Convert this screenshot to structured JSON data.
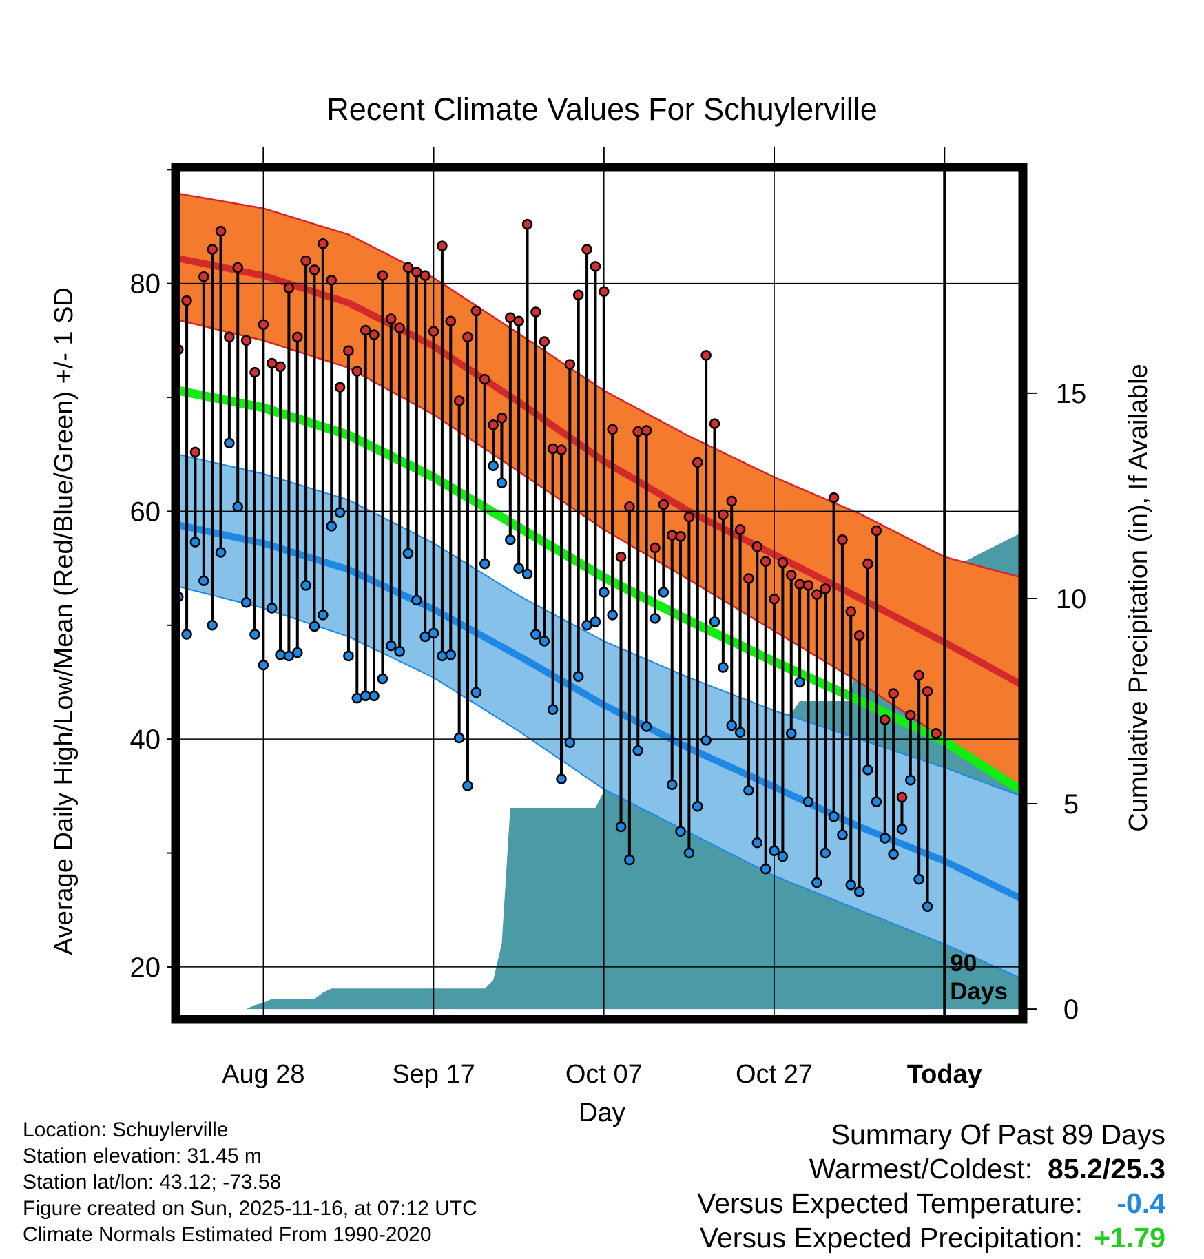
{
  "colors": {
    "high_band": "#f47a2d",
    "high_band_edge": "#d62728",
    "high_mean": "#d22a2a",
    "low_band": "#85c1e8",
    "low_band_edge": "#1e88e5",
    "low_mean": "#1e88e5",
    "mean_line": "#12ee12",
    "precip": "#4a9ba5",
    "high_dot": "#d32f2f",
    "low_dot": "#1e88e5",
    "stem": "#000000"
  },
  "chart_data": {
    "type": "line",
    "title": "Recent Climate Values For Schuylerville",
    "xlabel": "Day",
    "ylabel": "Average Daily High/Low/Mean (Red/Blue/Green) +/- 1 SD",
    "y2label": "Cumulative Precipitation (in), If Available",
    "ylim": [
      15.4,
      90.2
    ],
    "y2lim": [
      -0.25,
      20.5
    ],
    "xlim": [
      -0.3,
      99.2
    ],
    "yticks": [
      "20",
      "40",
      "60",
      "80"
    ],
    "y2ticks": [
      "0",
      "5",
      "10",
      "15"
    ],
    "xtick_days": [
      10,
      30,
      50,
      70,
      90
    ],
    "xtick_labels": [
      "Aug 28",
      "Sep 17",
      "Oct 07",
      "Oct 27",
      "Today"
    ],
    "period_marker_day": 90,
    "period_label_1": "90",
    "period_label_2": "Days",
    "normal_days": [
      0,
      10,
      20,
      30,
      40,
      50,
      60,
      70,
      80,
      90,
      99
    ],
    "normal_high_mean": [
      82.2,
      80.7,
      78.3,
      74.5,
      69.6,
      64.4,
      60.0,
      56.2,
      52.4,
      48.5,
      44.8
    ],
    "normal_high_upper": [
      87.9,
      86.6,
      84.3,
      80.5,
      75.6,
      70.6,
      66.6,
      63.0,
      59.8,
      56.0,
      54.2
    ],
    "normal_high_lower": [
      76.8,
      75.0,
      72.6,
      68.5,
      63.5,
      58.4,
      54.0,
      49.5,
      45.0,
      40.0,
      35.5
    ],
    "normal_mean": [
      70.6,
      69.1,
      66.7,
      63.0,
      58.6,
      54.2,
      50.4,
      46.8,
      43.4,
      39.8,
      35.5
    ],
    "normal_low_mean": [
      58.8,
      57.2,
      54.9,
      51.4,
      47.3,
      43.0,
      39.2,
      35.8,
      32.3,
      29.3,
      26.0
    ],
    "normal_low_upper": [
      65.0,
      63.3,
      61.0,
      57.2,
      52.6,
      48.6,
      45.4,
      42.5,
      40.0,
      37.5,
      35.0
    ],
    "normal_low_lower": [
      53.4,
      51.5,
      49.0,
      45.4,
      40.7,
      35.6,
      31.8,
      28.0,
      25.0,
      22.0,
      19.0
    ],
    "precip_x": [
      0,
      8,
      9,
      10,
      11,
      16,
      17,
      18,
      19,
      36,
      37,
      38,
      39,
      49,
      50,
      51,
      59,
      60,
      61,
      62,
      72,
      73,
      74,
      79,
      80,
      99
    ],
    "precip_y": [
      0.0,
      0.0,
      0.1,
      0.15,
      0.25,
      0.25,
      0.4,
      0.5,
      0.5,
      0.5,
      0.7,
      1.6,
      4.9,
      4.9,
      5.3,
      6.5,
      6.5,
      6.5,
      7.0,
      7.2,
      7.2,
      7.5,
      7.5,
      7.5,
      9.6,
      11.6
    ],
    "daily_high": [
      74.2,
      78.5,
      65.2,
      80.6,
      83.0,
      84.6,
      75.3,
      81.4,
      75.0,
      72.2,
      76.4,
      73.0,
      72.7,
      79.6,
      75.3,
      82.0,
      81.2,
      83.5,
      80.3,
      70.9,
      74.1,
      72.3,
      75.9,
      75.5,
      80.7,
      76.9,
      76.1,
      81.4,
      81.0,
      80.7,
      75.8,
      83.3,
      76.7,
      69.7,
      75.3,
      77.6,
      71.6,
      67.6,
      68.2,
      77.0,
      76.7,
      85.2,
      77.5,
      74.9,
      65.5,
      65.4,
      72.9,
      79.0,
      83.0,
      81.5,
      79.3,
      67.2,
      56.0,
      60.4,
      67.0,
      67.1,
      56.8,
      60.6,
      57.9,
      57.8,
      59.5,
      64.3,
      73.7,
      67.7,
      59.7,
      60.9,
      58.4,
      54.1,
      56.9,
      55.6,
      52.3,
      55.5,
      54.4,
      53.6,
      53.5,
      52.7,
      53.2,
      61.2,
      57.5,
      51.2,
      49.1,
      55.4,
      58.3,
      41.7,
      44.0,
      34.9,
      42.1,
      45.6,
      44.2,
      40.5
    ],
    "daily_low": [
      52.5,
      49.2,
      57.3,
      53.9,
      50.0,
      56.4,
      66.0,
      60.4,
      52.0,
      49.2,
      46.5,
      51.5,
      47.4,
      47.3,
      47.6,
      53.5,
      49.9,
      50.9,
      58.7,
      59.9,
      47.3,
      43.6,
      43.8,
      43.8,
      45.3,
      48.2,
      47.7,
      56.3,
      52.2,
      49.0,
      49.3,
      47.3,
      47.4,
      40.1,
      35.9,
      44.1,
      55.4,
      64.0,
      62.5,
      57.5,
      55.0,
      54.5,
      49.2,
      48.6,
      42.6,
      36.5,
      39.7,
      45.5,
      50.0,
      50.3,
      52.9,
      50.9,
      32.3,
      29.4,
      39.0,
      41.1,
      50.6,
      52.9,
      36.0,
      31.9,
      30.0,
      34.1,
      39.9,
      50.3,
      46.3,
      41.2,
      40.6,
      35.5,
      30.9,
      28.6,
      30.2,
      29.7,
      40.5,
      45.0,
      34.5,
      27.4,
      30.0,
      33.2,
      31.6,
      27.2,
      26.6,
      37.3,
      34.5,
      31.3,
      29.9,
      32.1,
      36.4,
      27.7,
      25.3,
      40.5
    ]
  },
  "info": {
    "location": "Location: Schuylerville",
    "elevation": "Station elevation: 31.45 m",
    "latlon": "Station lat/lon: 43.12; -73.58",
    "created": "Figure created on Sun, 2025-11-16, at 07:12 UTC",
    "normals": "Climate Normals Estimated From 1990-2020"
  },
  "summary": {
    "title": "Summary Of Past 89 Days",
    "warm_cold_label": "Warmest/Coldest:",
    "warm_cold_value": "85.2/25.3",
    "temp_label": "Versus Expected Temperature:",
    "temp_value": "-0.4",
    "precip_label": "Versus Expected Precipitation:",
    "precip_value": "+1.79"
  }
}
